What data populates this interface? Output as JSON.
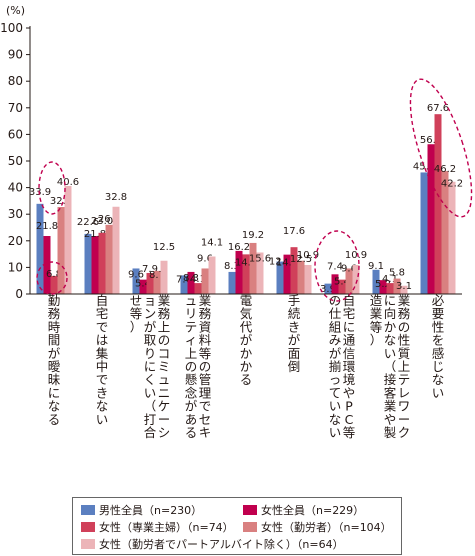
{
  "chart_data": {
    "type": "bar",
    "y_unit": "(%)",
    "ylim": [
      0,
      100
    ],
    "yticks": [
      0,
      10,
      20,
      30,
      40,
      50,
      60,
      70,
      80,
      90,
      100
    ],
    "grid": false,
    "legend_position": "bottom",
    "categories": [
      "勤務時間が曖昧になる",
      "自宅では集中できない",
      "業務上のコミュニケーションが取りにくい（打合せ等）",
      "業務資料等の管理でセキュリティ上の懸念がある",
      "電気代がかかる",
      "手続きが面倒",
      "自宅に通信環境やPC等の仕組みが揃っていない",
      "業務の性質上テレワークに向かない（接客業や製造業等）",
      "必要性を感じない"
    ],
    "series": [
      {
        "name": "男性全員（n=230）",
        "color": "#5b7fc0",
        "values": [
          33.9,
          22.6,
          9.6,
          7.0,
          8.3,
          12.2,
          3.9,
          9.1,
          45.7
        ]
      },
      {
        "name": "女性全員（n=229）",
        "color": "#c0004e",
        "values": [
          21.8,
          21.8,
          5.4,
          8.3,
          16.2,
          14.8,
          7.4,
          5.2,
          56.3
        ]
      },
      {
        "name": "女性（専業主婦）（n=74）",
        "color": "#d0405a",
        "values": [
          6.8,
          23.0,
          7.9,
          4.1,
          14.9,
          17.6,
          5.4,
          4.1,
          67.6
        ]
      },
      {
        "name": "女性（勤労者）（n=104）",
        "color": "#d98080",
        "values": [
          32.7,
          26.0,
          8.7,
          9.6,
          19.2,
          12.5,
          9.6,
          5.8,
          46.2
        ]
      },
      {
        "name": "女性（勤労者でパートアルバイト除く）（n=64）",
        "color": "#ecb4b8",
        "values": [
          40.6,
          32.8,
          12.5,
          14.1,
          15.6,
          10.9,
          10.9,
          3.1,
          42.2
        ]
      }
    ]
  },
  "legend": {
    "items": [
      "男性全員（n=230）",
      "女性全員（n=229）",
      "女性（専業主婦）（n=74）",
      "女性（勤労者）（n=104）",
      "女性（勤労者でパートアルバイト除く）（n=64）"
    ]
  }
}
